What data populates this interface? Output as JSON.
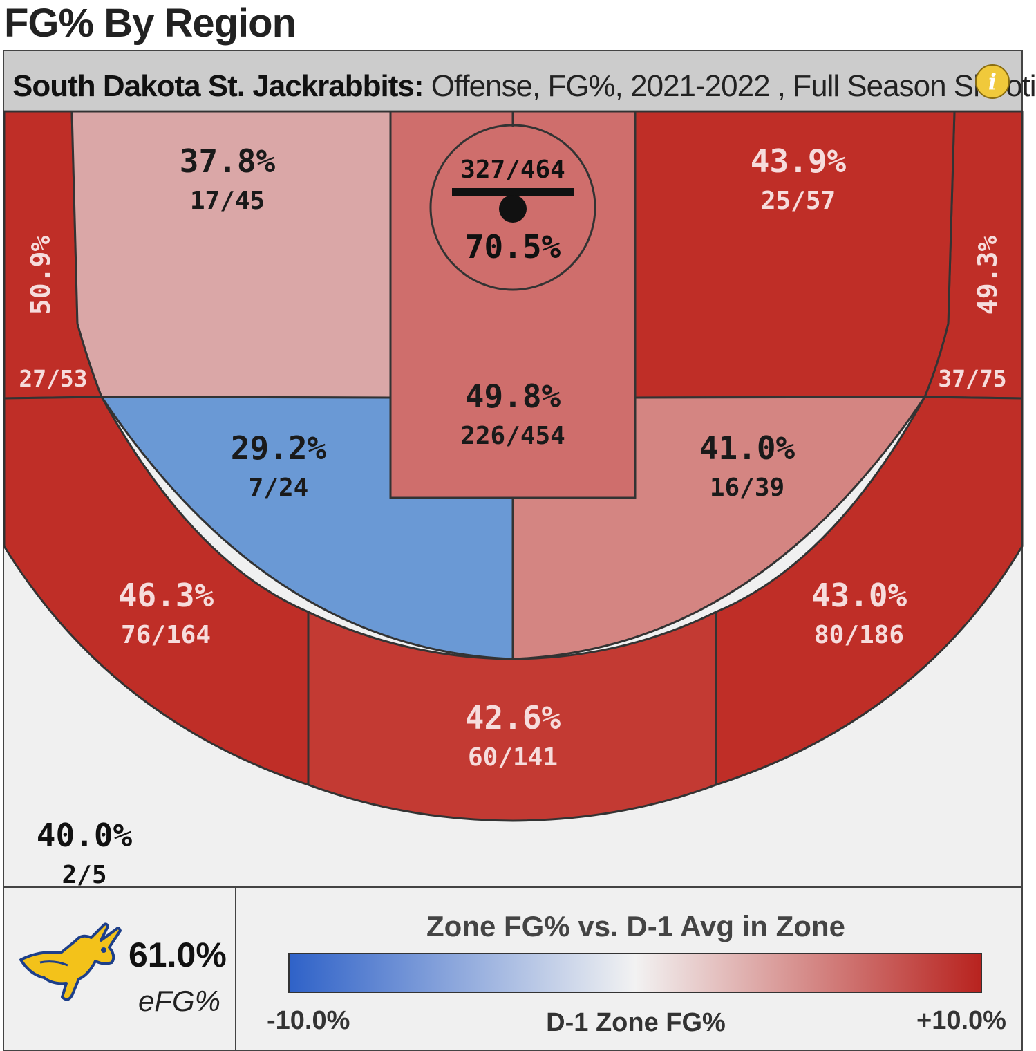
{
  "page": {
    "title": "FG% By Region"
  },
  "header": {
    "team": "South Dakota St. Jackrabbits:",
    "filters": " Offense, FG%, 2021-2022 , Full Season Shooti"
  },
  "info_icon": {
    "icon": "info-icon",
    "glyph": "i"
  },
  "chart_data": {
    "type": "heatmap",
    "title": "FG% By Region",
    "zones": [
      {
        "id": "left-corner",
        "pct": "50.9%",
        "makes_attempts": "27/53",
        "fill": "#bf2e27",
        "text_color": "#f6dcdc"
      },
      {
        "id": "left-baseline-mid",
        "pct": "37.8%",
        "makes_attempts": "17/45",
        "fill": "#daa7a7",
        "text_color": "#1a1a1a"
      },
      {
        "id": "rim",
        "pct": "70.5%",
        "makes_attempts": "327/464",
        "fill": "#cf6e6c",
        "text_color": "#111111"
      },
      {
        "id": "paint",
        "pct": "49.8%",
        "makes_attempts": "226/454",
        "fill": "#cf6e6c",
        "text_color": "#1a1a1a"
      },
      {
        "id": "right-baseline-mid",
        "pct": "43.9%",
        "makes_attempts": "25/57",
        "fill": "#bf2e27",
        "text_color": "#f6dcdc"
      },
      {
        "id": "right-corner",
        "pct": "49.3%",
        "makes_attempts": "37/75",
        "fill": "#bf2e27",
        "text_color": "#f6dcdc"
      },
      {
        "id": "left-elbow-mid",
        "pct": "29.2%",
        "makes_attempts": "7/24",
        "fill": "#6a99d5",
        "text_color": "#1a1a1a"
      },
      {
        "id": "right-elbow-mid",
        "pct": "41.0%",
        "makes_attempts": "16/39",
        "fill": "#d48582",
        "text_color": "#1a1a1a"
      },
      {
        "id": "left-wing-three",
        "pct": "46.3%",
        "makes_attempts": "76/164",
        "fill": "#bf2e27",
        "text_color": "#f6dcdc"
      },
      {
        "id": "top-key-three",
        "pct": "42.6%",
        "makes_attempts": "60/141",
        "fill": "#c33a33",
        "text_color": "#f6dcdc"
      },
      {
        "id": "right-wing-three",
        "pct": "43.0%",
        "makes_attempts": "80/186",
        "fill": "#bf2e27",
        "text_color": "#f6dcdc"
      },
      {
        "id": "backcourt",
        "pct": "40.0%",
        "makes_attempts": "2/5",
        "fill": "#f0f0f0",
        "text_color": "#111111"
      }
    ]
  },
  "summary": {
    "efg_value": "61.0%",
    "efg_label": "eFG%",
    "logo_icon": "jackrabbit-logo-icon"
  },
  "legend": {
    "title": "Zone FG% vs. D-1 Avg in Zone",
    "min_label": "-10.0%",
    "mid_label": "D-1 Zone FG%",
    "max_label": "+10.0%",
    "colors": {
      "low": "#2f62c8",
      "mid": "#f2f2f2",
      "high": "#b8231f"
    }
  }
}
